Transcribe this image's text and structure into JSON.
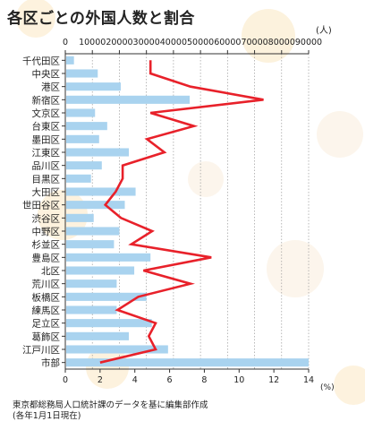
{
  "title": "各区ごとの外国人数と割合",
  "unit_top": "(人)",
  "unit_bottom": "(%)",
  "note": [
    "東京都総務局人口統計課のデータを基に編集部作成",
    "(各年1月1日現在)"
  ],
  "colors": {
    "bar": "#a9d3ef",
    "line": "#e8212a",
    "axis": "#333333",
    "grid": "#9a9a9a"
  },
  "chart_data": {
    "type": "bar",
    "orientation": "horizontal",
    "categories": [
      "千代田区",
      "中央区",
      "港区",
      "新宿区",
      "文京区",
      "台東区",
      "墨田区",
      "江東区",
      "品川区",
      "目黒区",
      "大田区",
      "世田谷区",
      "渋谷区",
      "中野区",
      "杉並区",
      "豊島区",
      "北区",
      "荒川区",
      "板橋区",
      "練馬区",
      "足立区",
      "葛飾区",
      "江戸川区",
      "市部"
    ],
    "series": [
      {
        "axis": "top",
        "values": [
          3200,
          12000,
          20500,
          46000,
          11000,
          15500,
          12500,
          23500,
          13500,
          9500,
          26000,
          22000,
          10500,
          20000,
          18000,
          31500,
          25500,
          19000,
          30000,
          19000,
          32000,
          23500,
          38000,
          90000
        ]
      },
      {
        "axis": "bottom",
        "type": "line",
        "values": [
          4.9,
          4.9,
          7.2,
          11.4,
          4.9,
          7.4,
          4.7,
          5.7,
          3.3,
          3.3,
          2.9,
          2.3,
          3.2,
          5.0,
          3.8,
          8.4,
          4.5,
          7.2,
          4.2,
          3.0,
          5.2,
          4.8,
          5.2,
          2.0
        ]
      }
    ],
    "x_top": {
      "ticks": [
        0,
        10000,
        20000,
        30000,
        40000,
        50000,
        60000,
        70000,
        80000,
        90000
      ],
      "range": [
        0,
        90000
      ]
    },
    "x_bottom": {
      "ticks": [
        0,
        2,
        4,
        6,
        8,
        10,
        12,
        14
      ],
      "range": [
        0,
        14
      ]
    },
    "grid": true
  }
}
